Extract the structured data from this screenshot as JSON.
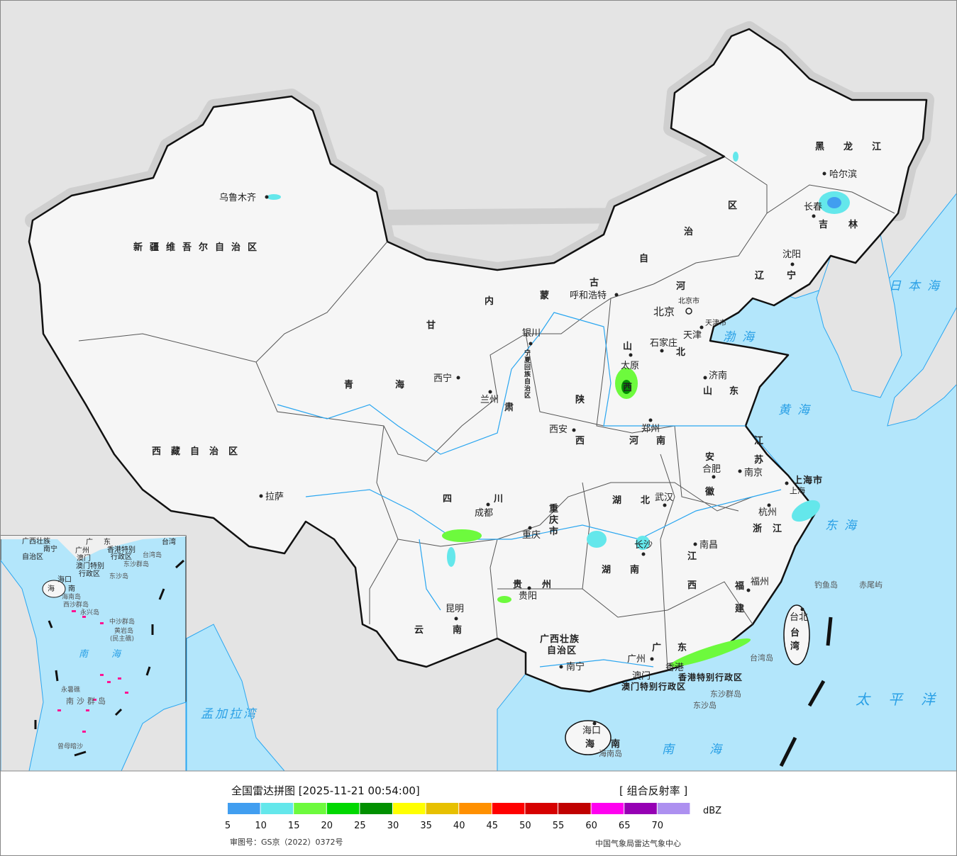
{
  "colors": {
    "sea": "#b3e6fb",
    "other_land": "#e4e4e4",
    "china": "#f6f6f6",
    "border": "#111111",
    "river": "#2aa6f0",
    "sea_label": "#2aa0e6",
    "island_mark": "#ff1493"
  },
  "map": {
    "provinces": [
      "新疆维吾尔自治区",
      "西藏自治区",
      "青",
      "海",
      "甘",
      "肃",
      "内",
      "蒙",
      "古",
      "自",
      "治",
      "区",
      "黑  龙  江",
      "吉",
      "林",
      "辽",
      "宁",
      "河",
      "北",
      "山",
      "西",
      "山",
      "东",
      "陕",
      "西",
      "河",
      "南",
      "江",
      "苏",
      "安",
      "徽",
      "湖",
      "北",
      "浙",
      "江",
      "四",
      "川",
      "重",
      "庆",
      "市",
      "湖",
      "南",
      "江",
      "西",
      "贵",
      "州",
      "福",
      "建",
      "云",
      "南",
      "广西壮族",
      "自治区",
      "广",
      "东",
      "海",
      "南",
      "台",
      "湾",
      "宁夏回族自治区"
    ],
    "cities": [
      "乌鲁木齐",
      "拉萨",
      "西宁",
      "兰州",
      "银川",
      "呼和浩特",
      "哈尔滨",
      "长春",
      "沈阳",
      "北京",
      "天津",
      "石家庄",
      "太原",
      "济南",
      "西安",
      "郑州",
      "南京",
      "上海",
      "合肥",
      "武汉",
      "杭州",
      "成都",
      "重庆",
      "长沙",
      "南昌",
      "贵阳",
      "福州",
      "昆明",
      "南宁",
      "广州",
      "海口",
      "台北",
      "北京市",
      "天津市",
      "上海市",
      "上海"
    ],
    "special": [
      "香港",
      "香港特别行政区",
      "澳门",
      "澳门特别行政区",
      "东沙群岛",
      "东沙岛",
      "海南岛",
      "台湾岛",
      "钓鱼岛",
      "赤尾屿"
    ],
    "seas": [
      "日本海",
      "渤海",
      "黄海",
      "东海",
      "太平洋",
      "南海",
      "孟加拉湾"
    ]
  },
  "inset": {
    "labels": [
      "广西壮族",
      "自治区",
      "南宁",
      "广",
      "东",
      "广州",
      "澳门",
      "香港特别",
      "行政区",
      "澳门特别",
      "行政区",
      "台湾",
      "台湾岛",
      "东沙群岛",
      "东沙岛",
      "海口",
      "海",
      "南",
      "海南岛",
      "西沙群岛",
      "永兴岛",
      "中沙群岛",
      "黄岩岛",
      "(民主礁)",
      "南",
      "海",
      "永暑礁",
      "南沙群岛",
      "曾母暗沙"
    ]
  },
  "legend": {
    "title": "全国雷达拼图 [2025-11-21 00:54:00]",
    "product": "[ 组合反射率 ]",
    "unit": "dBZ",
    "ticks": [
      "5",
      "10",
      "15",
      "20",
      "25",
      "30",
      "35",
      "40",
      "45",
      "50",
      "55",
      "60",
      "65",
      "70"
    ],
    "colors": [
      "#419ef0",
      "#64e7eb",
      "#6dfa3d",
      "#00d800",
      "#019000",
      "#ffff00",
      "#e7c000",
      "#ff9000",
      "#ff0000",
      "#d60000",
      "#c00000",
      "#ff00f0",
      "#9600b4",
      "#ad90f0"
    ],
    "approval": "审图号：GS京（2022）0372号",
    "source": "中国气象局雷达气象中心"
  }
}
